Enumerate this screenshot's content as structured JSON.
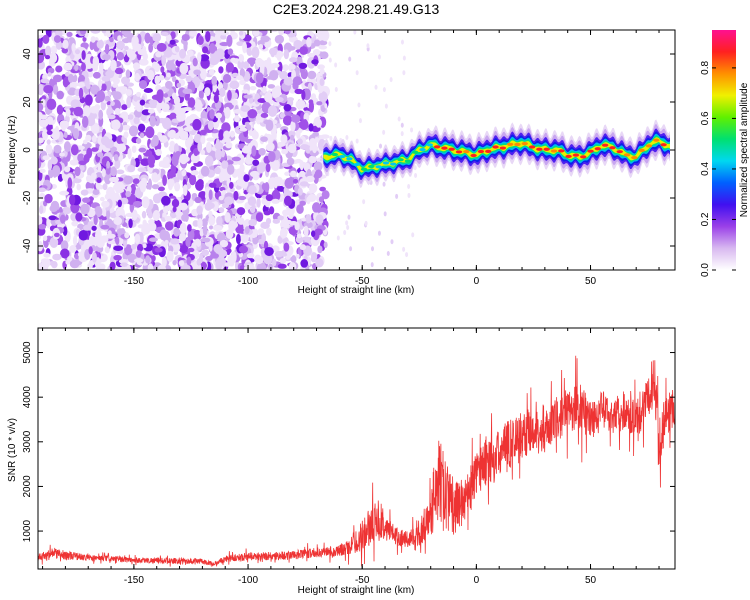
{
  "title": "C2E3.2024.298.21.49.G13",
  "chart_data": [
    {
      "type": "heatmap",
      "xlabel": "Height of straight line (km)",
      "ylabel": "Frequency (Hz)",
      "xlim": [
        -192,
        87
      ],
      "ylim": [
        -50,
        50
      ],
      "x_ticks": [
        -150,
        -100,
        -50,
        0,
        50
      ],
      "y_ticks": [
        -40,
        -20,
        0,
        20,
        40
      ],
      "noise_region_x": [
        -192,
        -66
      ],
      "ridge": {
        "x": [
          -67,
          -60,
          -55,
          -50,
          -45,
          -40,
          -35,
          -30,
          -25,
          -20,
          -15,
          -10,
          -5,
          0,
          5,
          10,
          15,
          20,
          25,
          30,
          35,
          40,
          45,
          50,
          55,
          60,
          65,
          70,
          75,
          80,
          85
        ],
        "freq_hz": [
          -3,
          -2,
          -4,
          -8,
          -7,
          -6,
          -5,
          -4,
          0,
          2,
          1,
          0,
          -1,
          -2,
          0,
          1,
          2,
          3,
          1,
          0,
          0,
          -2,
          -3,
          -1,
          2,
          1,
          -2,
          -3,
          2,
          4,
          1
        ]
      },
      "colorbar": {
        "label": "Normalized spectral amplitude",
        "range": [
          0,
          0.95
        ],
        "ticks": [
          0.0,
          0.2,
          0.4,
          0.6,
          0.8
        ],
        "tick_labels": [
          "0.0",
          "0.2",
          "0.4",
          "0.6",
          "0.8"
        ],
        "colors": [
          "#ffffff",
          "#d8b8f0",
          "#9a40e8",
          "#4010f0",
          "#0060ff",
          "#00d8f0",
          "#00e070",
          "#60f000",
          "#f0f000",
          "#ff9000",
          "#ff2020",
          "#ff1090"
        ]
      }
    },
    {
      "type": "line",
      "xlabel": "Height of straight line (km)",
      "ylabel": "SNR (10 * v/v)",
      "xlim": [
        -192,
        87
      ],
      "ylim": [
        150,
        5550
      ],
      "x_ticks": [
        -150,
        -100,
        -50,
        0,
        50
      ],
      "y_ticks": [
        1000,
        2000,
        3000,
        4000,
        5000
      ],
      "color": "#ee3333",
      "envelope": {
        "x": [
          -192,
          -185,
          -180,
          -170,
          -160,
          -150,
          -140,
          -130,
          -120,
          -115,
          -110,
          -100,
          -90,
          -80,
          -70,
          -60,
          -55,
          -50,
          -45,
          -40,
          -35,
          -30,
          -25,
          -20,
          -18,
          -15,
          -10,
          -5,
          0,
          5,
          10,
          15,
          20,
          25,
          30,
          35,
          40,
          45,
          50,
          55,
          60,
          65,
          70,
          75,
          78,
          80,
          83,
          87
        ],
        "mean": [
          420,
          500,
          460,
          400,
          380,
          350,
          340,
          330,
          320,
          260,
          380,
          430,
          440,
          460,
          520,
          560,
          650,
          900,
          1200,
          1100,
          900,
          800,
          900,
          1300,
          2200,
          2000,
          1500,
          1700,
          2300,
          2600,
          2700,
          3000,
          3100,
          3300,
          3200,
          3500,
          3700,
          3800,
          3500,
          3700,
          3600,
          3700,
          3500,
          3900,
          4500,
          3000,
          3600,
          3800
        ],
        "spread": [
          150,
          250,
          200,
          140,
          130,
          130,
          130,
          130,
          120,
          90,
          150,
          180,
          200,
          200,
          220,
          250,
          400,
          700,
          900,
          600,
          400,
          400,
          500,
          900,
          2200,
          1800,
          1200,
          1000,
          1000,
          1200,
          1100,
          1200,
          1100,
          900,
          900,
          1000,
          1000,
          1200,
          900,
          900,
          800,
          900,
          800,
          1000,
          1200,
          1200,
          1000,
          900
        ]
      }
    }
  ]
}
